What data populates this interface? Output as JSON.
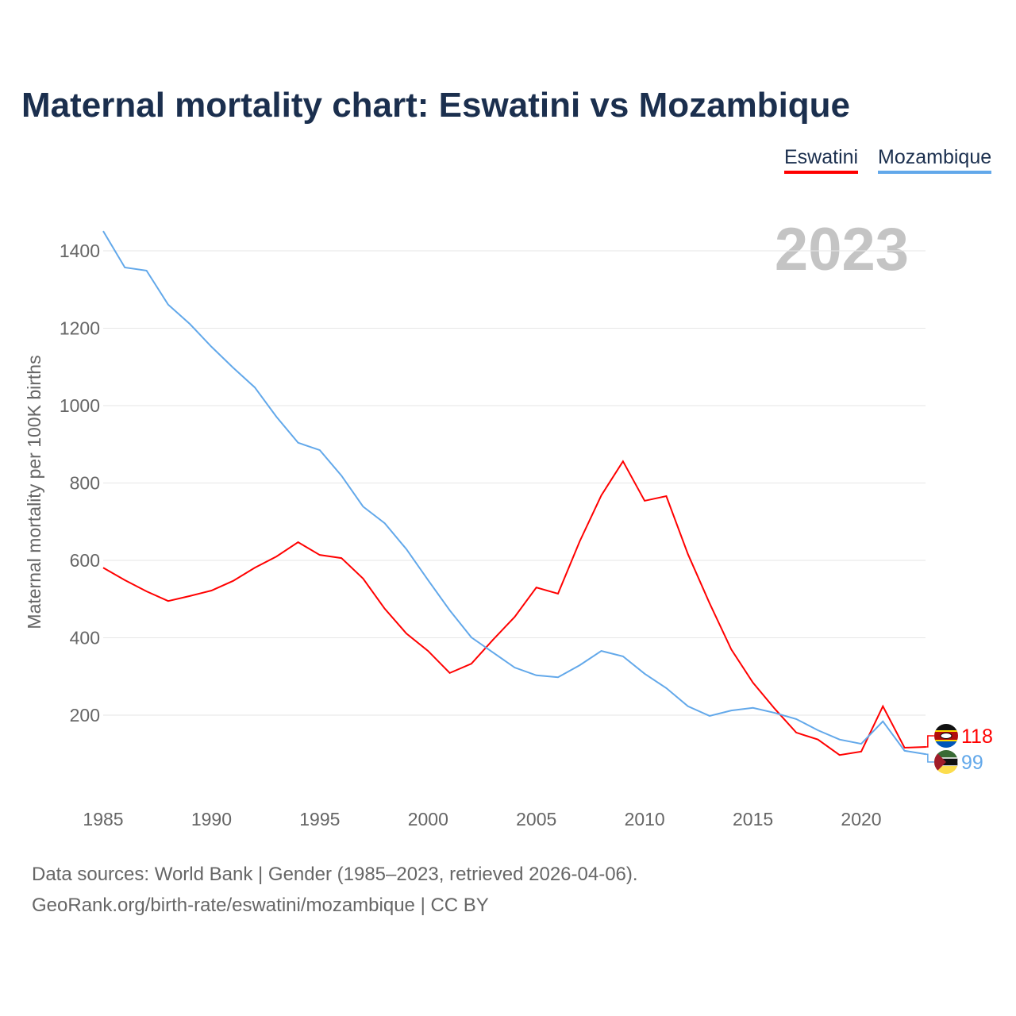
{
  "title": "Maternal mortality chart: Eswatini vs Mozambique",
  "footer": {
    "line1": "Data sources: World Bank | Gender (1985–2023, retrieved 2026-04-06).",
    "line2": "GeoRank.org/birth-rate/eswatini/mozambique | CC BY"
  },
  "chart_data": {
    "type": "line",
    "title": "Maternal mortality chart: Eswatini vs Mozambique",
    "xlabel": "",
    "ylabel": "Maternal mortality per 100K births",
    "year_label": "2023",
    "xlim": [
      1985,
      2023
    ],
    "ylim": [
      0,
      1450
    ],
    "xticks": [
      1985,
      1990,
      1995,
      2000,
      2005,
      2010,
      2015,
      2020
    ],
    "yticks": [
      200,
      400,
      600,
      800,
      1000,
      1200,
      1400
    ],
    "legend_position": "top-right",
    "x": [
      1985,
      1986,
      1987,
      1988,
      1989,
      1990,
      1991,
      1992,
      1993,
      1994,
      1995,
      1996,
      1997,
      1998,
      1999,
      2000,
      2001,
      2002,
      2003,
      2004,
      2005,
      2006,
      2007,
      2008,
      2009,
      2010,
      2011,
      2012,
      2013,
      2014,
      2015,
      2016,
      2017,
      2018,
      2019,
      2020,
      2021,
      2022,
      2023
    ],
    "series": [
      {
        "name": "Eswatini",
        "color": "#ff0000",
        "end_label": "118",
        "values": [
          581,
          549,
          520,
          495,
          508,
          522,
          547,
          581,
          610,
          647,
          614,
          606,
          553,
          475,
          411,
          366,
          309,
          333,
          395,
          454,
          530,
          514,
          649,
          768,
          856,
          754,
          766,
          616,
          489,
          370,
          284,
          217,
          155,
          137,
          97,
          106,
          223,
          116,
          118
        ]
      },
      {
        "name": "Mozambique",
        "color": "#62a8ea",
        "end_label": "99",
        "values": [
          1451,
          1357,
          1349,
          1261,
          1211,
          1152,
          1098,
          1047,
          971,
          904,
          885,
          819,
          739,
          696,
          629,
          549,
          471,
          401,
          362,
          323,
          303,
          298,
          329,
          366,
          352,
          307,
          270,
          223,
          198,
          212,
          219,
          206,
          190,
          161,
          137,
          126,
          184,
          108,
          99
        ]
      }
    ]
  }
}
